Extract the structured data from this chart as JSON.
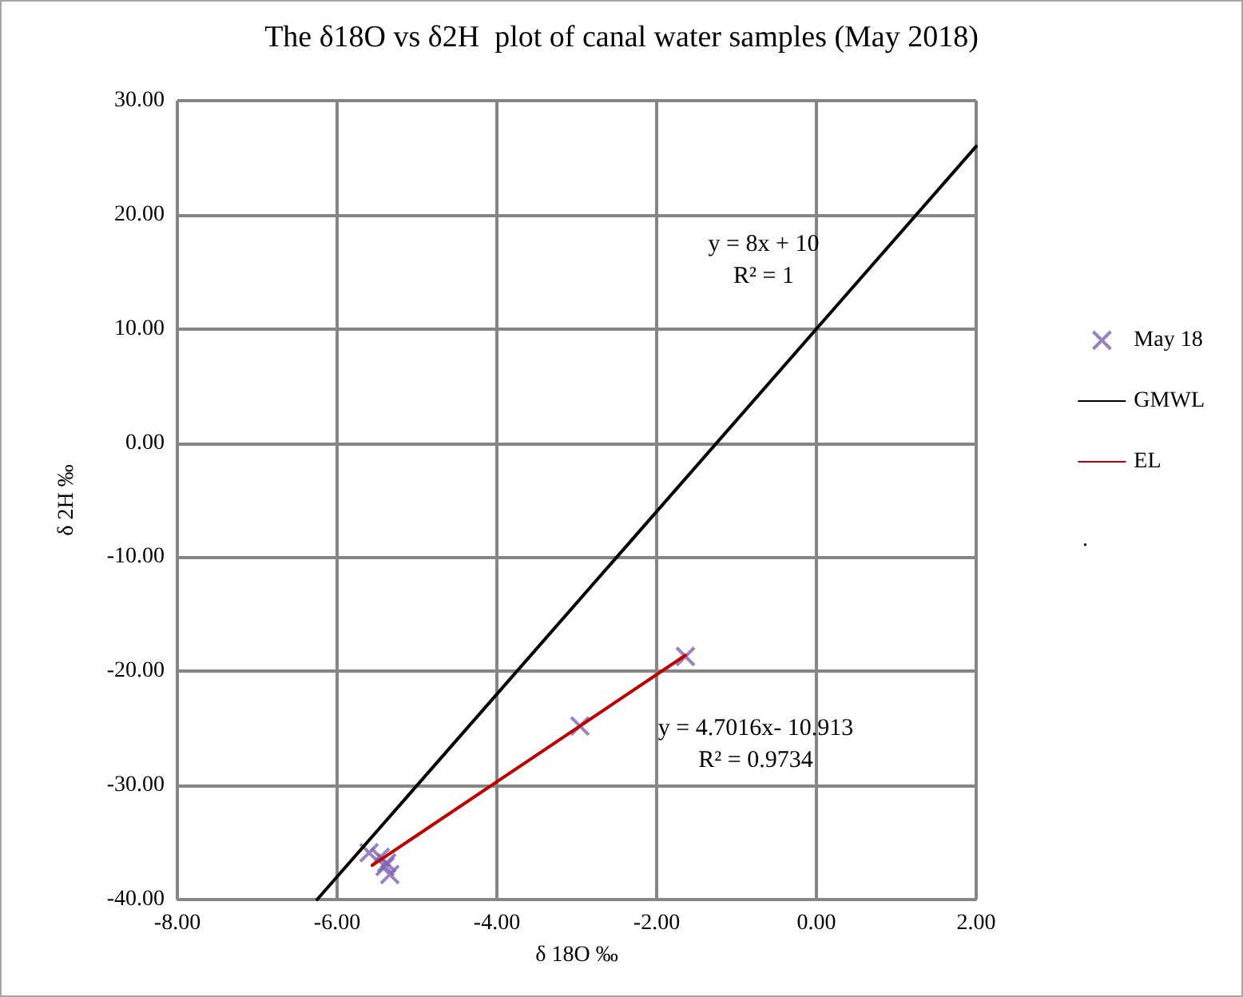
{
  "chart_data": {
    "type": "scatter",
    "title": "The δ18O vs δ2H  plot of canal water samples (May 2018)",
    "xlabel": "δ 18O ‰",
    "ylabel": "δ 2H ‰",
    "xlim": [
      -8,
      2
    ],
    "xticks": [
      {
        "value": -8,
        "label": "-8.00"
      },
      {
        "value": -6,
        "label": "-6.00"
      },
      {
        "value": -4,
        "label": "-4.00"
      },
      {
        "value": -2,
        "label": "-2.00"
      },
      {
        "value": 0,
        "label": "0.00"
      },
      {
        "value": 2,
        "label": "2.00"
      }
    ],
    "ylim": [
      -40,
      30
    ],
    "yticks": [
      {
        "value": -40,
        "label": "-40.00"
      },
      {
        "value": -30,
        "label": "-30.00"
      },
      {
        "value": -20,
        "label": "-20.00"
      },
      {
        "value": -10,
        "label": "-10.00"
      },
      {
        "value": 0,
        "label": "0.00"
      },
      {
        "value": 10,
        "label": "10.00"
      },
      {
        "value": 20,
        "label": "20.00"
      },
      {
        "value": 30,
        "label": "30.00"
      }
    ],
    "grid": true,
    "legend": "right",
    "series": [
      {
        "name": "May 18",
        "marker": "cross",
        "color": "#7f63b0",
        "x": [
          -1.64,
          -2.96,
          -5.6,
          -5.46,
          -5.38,
          -5.4,
          -5.34
        ],
        "values": [
          -18.7,
          -24.8,
          -35.9,
          -36.3,
          -36.8,
          -37.1,
          -37.8
        ]
      },
      {
        "name": "GMWL",
        "type": "line",
        "marker": "none",
        "color": "#000000",
        "x": [
          -6.25,
          2
        ],
        "values": [
          -40,
          26
        ]
      },
      {
        "name": "EL",
        "type": "line",
        "marker": "none",
        "color": "#c00000",
        "x": [
          -5.56,
          -1.64
        ],
        "values": [
          -37.0,
          -18.6
        ]
      }
    ],
    "annotations": [
      "y = 8x + 10\nR² = 1",
      "y = 4.7016x- 10.913\nR² = 0.9734",
      "."
    ]
  }
}
